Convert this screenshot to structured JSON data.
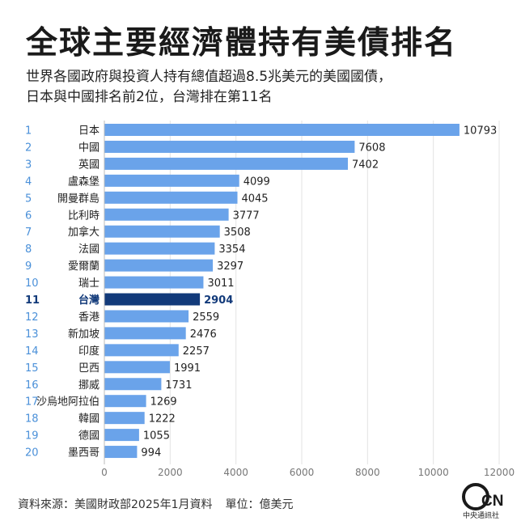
{
  "title": "全球主要經濟體持有美債排名",
  "subtitle": {
    "line1": "世界各國政府與投資人持有總值超過8.5兆美元的美國國債，",
    "line2": "日本與中國排名前2位，台灣排在第11名"
  },
  "footer": {
    "source": "資料來源：美國財政部2025年1月資料",
    "unit": "單位：億美元"
  },
  "logo": {
    "text": "CNA",
    "subtext": "中央通訊社"
  },
  "colors": {
    "bar": "#6aa3ea",
    "highlight": "#123a7a",
    "rank": "#4a90d9",
    "highlight_text": "#123a7a"
  },
  "chart_data": {
    "type": "bar",
    "orientation": "horizontal",
    "ranks": [
      "1",
      "2",
      "3",
      "4",
      "5",
      "6",
      "7",
      "8",
      "9",
      "10",
      "11",
      "12",
      "13",
      "14",
      "15",
      "16",
      "17",
      "18",
      "19",
      "20"
    ],
    "categories": [
      "日本",
      "中國",
      "英國",
      "盧森堡",
      "開曼群島",
      "比利時",
      "加拿大",
      "法國",
      "愛爾蘭",
      "瑞士",
      "台灣",
      "香港",
      "新加坡",
      "印度",
      "巴西",
      "挪威",
      "沙烏地阿拉伯",
      "韓國",
      "德國",
      "墨西哥"
    ],
    "values": [
      10793,
      7608,
      7402,
      4099,
      4045,
      3777,
      3508,
      3354,
      3297,
      3011,
      2904,
      2559,
      2476,
      2257,
      1991,
      1731,
      1269,
      1222,
      1055,
      994
    ],
    "highlight": "台灣",
    "xlim": [
      0,
      12000
    ],
    "xticks": [
      0,
      2000,
      4000,
      6000,
      8000,
      10000,
      12000
    ],
    "grid": true
  }
}
